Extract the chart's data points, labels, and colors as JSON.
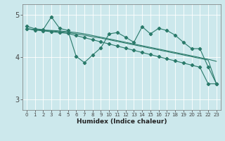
{
  "xlabel": "Humidex (Indice chaleur)",
  "background_color": "#cce8ec",
  "grid_color": "#ffffff",
  "line_color": "#2a7a6a",
  "xlim": [
    -0.5,
    23.5
  ],
  "ylim": [
    2.75,
    5.25
  ],
  "yticks": [
    3,
    4,
    5
  ],
  "xticks": [
    0,
    1,
    2,
    3,
    4,
    5,
    6,
    7,
    8,
    9,
    10,
    11,
    12,
    13,
    14,
    15,
    16,
    17,
    18,
    19,
    20,
    21,
    22,
    23
  ],
  "series": [
    {
      "x": [
        0,
        1,
        2,
        3,
        4,
        5,
        6,
        7,
        8,
        9,
        10,
        11,
        12,
        13,
        14,
        15,
        16,
        17,
        18,
        19,
        20,
        21,
        22,
        23
      ],
      "y": [
        4.73,
        4.67,
        4.65,
        4.95,
        4.68,
        4.63,
        4.02,
        3.87,
        4.05,
        4.22,
        4.55,
        4.58,
        4.47,
        4.35,
        4.72,
        4.55,
        4.68,
        4.63,
        4.52,
        4.35,
        4.2,
        4.2,
        3.77,
        3.37
      ],
      "marker": true
    },
    {
      "x": [
        0,
        1,
        2,
        3,
        4,
        5,
        6,
        7,
        8,
        9,
        10,
        11,
        12,
        13,
        14,
        15,
        16,
        17,
        18,
        19,
        20,
        21,
        22,
        23
      ],
      "y": [
        4.67,
        4.65,
        4.63,
        4.62,
        4.6,
        4.58,
        4.55,
        4.52,
        4.48,
        4.45,
        4.41,
        4.37,
        4.33,
        4.29,
        4.25,
        4.21,
        4.17,
        4.13,
        4.09,
        4.05,
        4.01,
        3.97,
        3.93,
        3.37
      ],
      "marker": false
    },
    {
      "x": [
        0,
        1,
        2,
        3,
        4,
        5,
        6,
        7,
        8,
        9,
        10,
        11,
        12,
        13,
        14,
        15,
        16,
        17,
        18,
        19,
        20,
        21,
        22,
        23
      ],
      "y": [
        4.67,
        4.65,
        4.64,
        4.63,
        4.62,
        4.6,
        4.58,
        4.55,
        4.51,
        4.47,
        4.43,
        4.39,
        4.35,
        4.31,
        4.27,
        4.23,
        4.19,
        4.15,
        4.11,
        4.07,
        4.03,
        3.99,
        3.95,
        3.9
      ],
      "marker": false
    },
    {
      "x": [
        0,
        1,
        2,
        3,
        4,
        5,
        6,
        7,
        8,
        9,
        10,
        11,
        12,
        13,
        14,
        15,
        16,
        17,
        18,
        19,
        20,
        21,
        22,
        23
      ],
      "y": [
        4.67,
        4.64,
        4.62,
        4.6,
        4.58,
        4.56,
        4.51,
        4.46,
        4.41,
        4.36,
        4.31,
        4.26,
        4.21,
        4.16,
        4.11,
        4.06,
        4.01,
        3.96,
        3.91,
        3.86,
        3.81,
        3.76,
        3.37,
        3.37
      ],
      "marker": true
    }
  ]
}
